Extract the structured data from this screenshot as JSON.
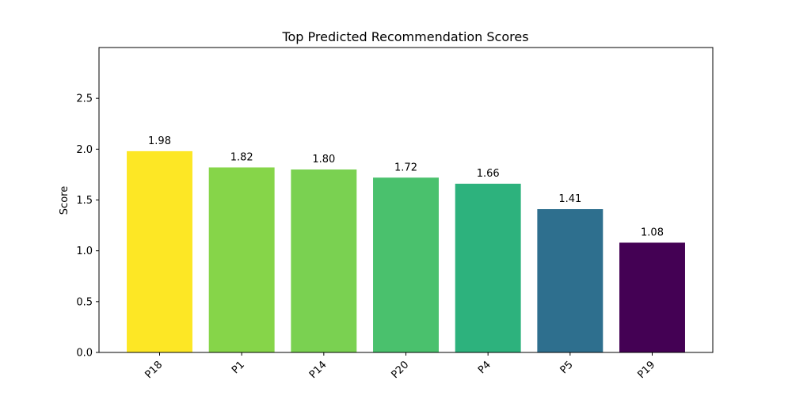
{
  "chart_data": {
    "type": "bar",
    "title": "Top Predicted Recommendation Scores",
    "xlabel": "",
    "ylabel": "Score",
    "categories": [
      "P18",
      "P1",
      "P14",
      "P20",
      "P4",
      "P5",
      "P19"
    ],
    "values": [
      1.98,
      1.82,
      1.8,
      1.72,
      1.66,
      1.41,
      1.08
    ],
    "value_labels": [
      "1.98",
      "1.82",
      "1.80",
      "1.72",
      "1.66",
      "1.41",
      "1.08"
    ],
    "bar_colors": [
      "#fde725",
      "#86d549",
      "#7ad151",
      "#4ac16d",
      "#2db27d",
      "#2e6f8e",
      "#440154"
    ],
    "ylim": [
      0,
      3.0
    ],
    "yticks": [
      0.0,
      0.5,
      1.0,
      1.5,
      2.0,
      2.5
    ],
    "ytick_labels": [
      "0.0",
      "0.5",
      "1.0",
      "1.5",
      "2.0",
      "2.5"
    ],
    "xtick_rotation_deg": 45,
    "grid": false,
    "legend": "none"
  }
}
